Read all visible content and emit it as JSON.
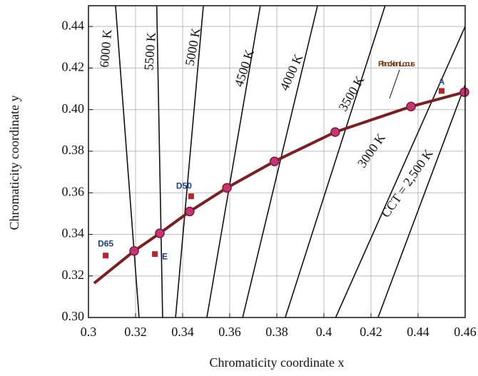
{
  "chart_data": {
    "type": "line",
    "xlabel": "Chromaticity coordinate x",
    "ylabel": "Chromaticity coordinate y",
    "xlim": [
      0.3,
      0.46
    ],
    "ylim": [
      0.3,
      0.45
    ],
    "xticks": [
      0.3,
      0.32,
      0.34,
      0.36,
      0.38,
      0.4,
      0.42,
      0.44,
      0.46
    ],
    "yticks": [
      {
        "value": 0.3,
        "label": "0.30"
      },
      0.32,
      0.34,
      0.36,
      0.38,
      {
        "value": 0.4,
        "label": "0.40"
      },
      0.42,
      0.44
    ],
    "grid": true,
    "locus": {
      "label": "Planckian Locus",
      "color": "#7a1f22",
      "marker_color": "#c8327a",
      "x": [
        0.3024,
        0.3194,
        0.3303,
        0.343,
        0.3588,
        0.379,
        0.4048,
        0.437,
        0.4597
      ],
      "y": [
        0.3165,
        0.332,
        0.3405,
        0.351,
        0.3624,
        0.3751,
        0.3892,
        0.4015,
        0.4084
      ],
      "marker_x": [
        0.3194,
        0.3303,
        0.343,
        0.3588,
        0.379,
        0.4048,
        0.437,
        0.4597
      ],
      "marker_y": [
        0.332,
        0.3405,
        0.351,
        0.3624,
        0.3751,
        0.3892,
        0.4015,
        0.4084
      ]
    },
    "isotherms": [
      {
        "label": "6000 K",
        "x": [
          0.3115,
          0.3215
        ],
        "y": [
          0.45,
          0.3
        ]
      },
      {
        "label": "5500 K",
        "x": [
          0.329,
          0.3315
        ],
        "y": [
          0.45,
          0.3
        ]
      },
      {
        "label": "5000 K",
        "x": [
          0.3488,
          0.337
        ],
        "y": [
          0.45,
          0.3
        ]
      },
      {
        "label": "4500 K",
        "x": [
          0.373,
          0.3503
        ],
        "y": [
          0.45,
          0.3
        ]
      },
      {
        "label": "4000 K",
        "x": [
          0.3973,
          0.3655
        ],
        "y": [
          0.45,
          0.3
        ]
      },
      {
        "label": "3500 K",
        "x": [
          0.426,
          0.3836
        ],
        "y": [
          0.45,
          0.3
        ]
      },
      {
        "label": "3000 K",
        "x": [
          0.46,
          0.405
        ],
        "y": [
          0.44,
          0.3
        ]
      },
      {
        "label": "CCT = 2,500 K",
        "x": [
          0.46,
          0.423
        ],
        "y": [
          0.412,
          0.3
        ]
      }
    ],
    "points": [
      {
        "label": "D65",
        "x": 0.3073,
        "y": 0.3298
      },
      {
        "label": "E",
        "x": 0.3282,
        "y": 0.3305
      },
      {
        "label": "D50",
        "x": 0.3436,
        "y": 0.3583
      },
      {
        "label": "A",
        "x": 0.45,
        "y": 0.409
      }
    ],
    "point_color": "#b3262b",
    "point_label_color": "#1f3f8a"
  }
}
